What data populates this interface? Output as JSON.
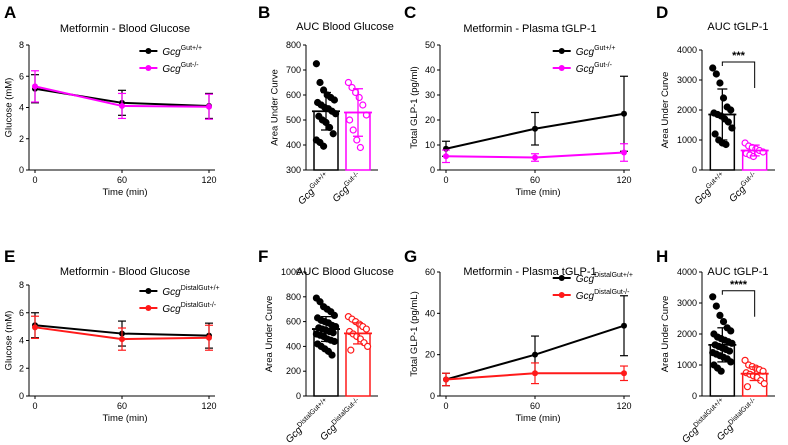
{
  "panels": [
    {
      "letter": "A",
      "kind": "line",
      "title": "Metformin - Blood Glucose",
      "xlabel": "Time (min)",
      "ylabel": "Glucose (mM)",
      "ylim": [
        0,
        8
      ],
      "yticks": [
        0,
        2,
        4,
        6,
        8
      ],
      "x": [
        0,
        60,
        120
      ],
      "xlim": [
        0,
        120
      ],
      "xticks": [
        0,
        60,
        120
      ],
      "series": [
        {
          "name": "Gcg",
          "sup": "Gut+/+",
          "color": "#000000",
          "values": [
            5.2,
            4.3,
            4.1
          ],
          "errors": [
            0.9,
            0.8,
            0.8
          ]
        },
        {
          "name": "Gcg",
          "sup": "Gut-/-",
          "color": "#ff00ff",
          "values": [
            5.35,
            4.1,
            4.05
          ],
          "errors": [
            1.0,
            0.8,
            0.8
          ]
        }
      ]
    },
    {
      "letter": "B",
      "kind": "bar",
      "title": "AUC Blood Glucose",
      "ylabel": "Area Under Curve",
      "ylim": [
        300,
        800
      ],
      "yticks": [
        300,
        400,
        500,
        600,
        700,
        800
      ],
      "bars": [
        {
          "name": "Gcg",
          "sup": "Gut+/+",
          "color": "#000000",
          "filled": true,
          "value": 535,
          "error": 75,
          "points": [
            725,
            650,
            620,
            600,
            590,
            580,
            570,
            560,
            550,
            545,
            535,
            525,
            515,
            500,
            490,
            470,
            445,
            420,
            410,
            395
          ]
        },
        {
          "name": "Gcg",
          "sup": "Gut-/-",
          "color": "#ff00ff",
          "filled": false,
          "value": 530,
          "error": 95,
          "points": [
            650,
            630,
            610,
            590,
            560,
            520,
            500,
            460,
            420,
            390
          ]
        }
      ]
    },
    {
      "letter": "C",
      "kind": "line",
      "title": "Metformin - Plasma tGLP-1",
      "xlabel": "Time (min)",
      "ylabel": "Total GLP-1 (pg/ml)",
      "ylim": [
        0,
        50
      ],
      "yticks": [
        0,
        10,
        20,
        30,
        40,
        50
      ],
      "x": [
        0,
        60,
        120
      ],
      "xlim": [
        0,
        120
      ],
      "xticks": [
        0,
        60,
        120
      ],
      "series": [
        {
          "name": "Gcg",
          "sup": "Gut+/+",
          "color": "#000000",
          "values": [
            8.5,
            16.5,
            22.5
          ],
          "errors": [
            3.0,
            6.5,
            15.0
          ]
        },
        {
          "name": "Gcg",
          "sup": "Gut-/-",
          "color": "#ff00ff",
          "values": [
            5.5,
            5.0,
            7.0
          ],
          "errors": [
            2.5,
            1.5,
            3.5
          ]
        }
      ]
    },
    {
      "letter": "D",
      "kind": "bar",
      "title": "AUC tGLP-1",
      "ylabel": "Area Under Curve",
      "ylim": [
        0,
        4000
      ],
      "yticks": [
        0,
        1000,
        2000,
        3000,
        4000
      ],
      "significance": "***",
      "bars": [
        {
          "name": "Gcg",
          "sup": "Gut+/+",
          "color": "#000000",
          "filled": true,
          "value": 1850,
          "error": 850,
          "points": [
            3400,
            3200,
            2900,
            2400,
            2100,
            2000,
            1900,
            1850,
            1800,
            1700,
            1600,
            1400,
            1200,
            1000,
            900,
            850
          ]
        },
        {
          "name": "Gcg",
          "sup": "Gut-/-",
          "color": "#ff00ff",
          "filled": false,
          "value": 650,
          "error": 180,
          "points": [
            900,
            800,
            750,
            700,
            650,
            600,
            550,
            500,
            450
          ]
        }
      ]
    },
    {
      "letter": "E",
      "kind": "line",
      "title": "Metformin - Blood Glucose",
      "xlabel": "Time (min)",
      "ylabel": "Glucose (mM)",
      "ylim": [
        0,
        8
      ],
      "yticks": [
        0,
        2,
        4,
        6,
        8
      ],
      "x": [
        0,
        60,
        120
      ],
      "xlim": [
        0,
        120
      ],
      "xticks": [
        0,
        60,
        120
      ],
      "series": [
        {
          "name": "Gcg",
          "sup": "DistalGut+/+",
          "color": "#000000",
          "values": [
            5.1,
            4.5,
            4.35
          ],
          "errors": [
            0.9,
            0.9,
            0.9
          ]
        },
        {
          "name": "Gcg",
          "sup": "DistalGut-/-",
          "color": "#ff1a1a",
          "values": [
            4.95,
            4.1,
            4.2
          ],
          "errors": [
            0.8,
            0.8,
            0.9
          ]
        }
      ]
    },
    {
      "letter": "F",
      "kind": "bar",
      "title": "AUC Blood Glucose",
      "ylabel": "Area Under Curve",
      "ylim": [
        0,
        1000
      ],
      "yticks": [
        0,
        200,
        400,
        600,
        800,
        1000
      ],
      "bars": [
        {
          "name": "Gcg",
          "sup": "DistalGut+/+",
          "color": "#000000",
          "filled": true,
          "value": 540,
          "error": 100,
          "points": [
            790,
            760,
            720,
            700,
            680,
            650,
            630,
            610,
            600,
            590,
            570,
            560,
            550,
            540,
            530,
            520,
            510,
            500,
            490,
            480,
            460,
            450,
            440,
            420,
            400,
            380,
            360,
            330
          ]
        },
        {
          "name": "Gcg",
          "sup": "DistalGut-/-",
          "color": "#ff1a1a",
          "filled": false,
          "value": 505,
          "error": 85,
          "points": [
            640,
            620,
            600,
            580,
            560,
            540,
            520,
            500,
            480,
            460,
            430,
            400,
            370
          ]
        }
      ]
    },
    {
      "letter": "G",
      "kind": "line",
      "title": "Metformin - Plasma tGLP-1",
      "xlabel": "Time (min)",
      "ylabel": "Total GLP-1 (pg/mL)",
      "ylim": [
        0,
        60
      ],
      "yticks": [
        0,
        20,
        40,
        60
      ],
      "x": [
        0,
        60,
        120
      ],
      "xlim": [
        0,
        120
      ],
      "xticks": [
        0,
        60,
        120
      ],
      "series": [
        {
          "name": "Gcg",
          "sup": "DistalGut+/+",
          "color": "#000000",
          "values": [
            8.0,
            20.0,
            34.0
          ],
          "errors": [
            3.0,
            9.0,
            14.5
          ]
        },
        {
          "name": "Gcg",
          "sup": "DistalGut-/-",
          "color": "#ff1a1a",
          "values": [
            8.0,
            11.0,
            11.0
          ],
          "errors": [
            3.0,
            5.0,
            3.5
          ]
        }
      ]
    },
    {
      "letter": "H",
      "kind": "bar",
      "title": "AUC tGLP-1",
      "ylabel": "Area Under Curve",
      "ylim": [
        0,
        4000
      ],
      "yticks": [
        0,
        1000,
        2000,
        3000,
        4000
      ],
      "significance": "****",
      "bars": [
        {
          "name": "Gcg",
          "sup": "DistalGut+/+",
          "color": "#000000",
          "filled": true,
          "value": 1650,
          "error": 550,
          "points": [
            3200,
            2900,
            2600,
            2400,
            2200,
            2100,
            2000,
            1900,
            1850,
            1800,
            1750,
            1700,
            1650,
            1600,
            1550,
            1500,
            1450,
            1400,
            1350,
            1300,
            1250,
            1200,
            1100,
            1000,
            900,
            800
          ]
        },
        {
          "name": "Gcg",
          "sup": "DistalGut-/-",
          "color": "#ff1a1a",
          "filled": false,
          "value": 720,
          "error": 220,
          "points": [
            1150,
            1000,
            950,
            900,
            850,
            800,
            750,
            700,
            650,
            600,
            500,
            400,
            300
          ]
        }
      ]
    }
  ]
}
